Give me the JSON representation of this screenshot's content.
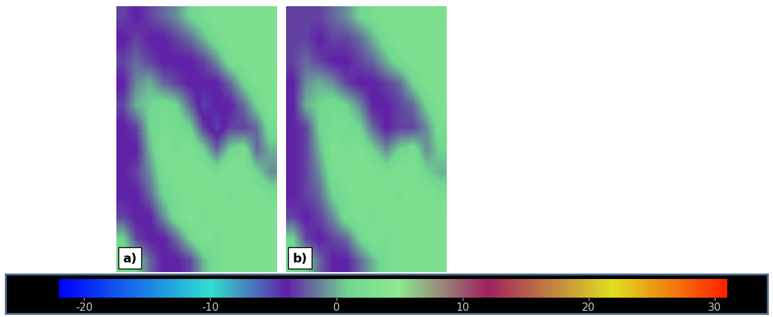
{
  "chart_data": [
    {
      "type": "heatmap",
      "title": "a)",
      "tick_labels": false,
      "cells": [
        [
          -3,
          -4,
          -3,
          -2,
          -1,
          1,
          2,
          3,
          3,
          3,
          3,
          3
        ],
        [
          -4,
          -3,
          -4,
          -4,
          -3,
          -2,
          0,
          2,
          3,
          3,
          3,
          3
        ],
        [
          -3,
          -2,
          -3,
          -4,
          -4,
          -4,
          -3,
          -1,
          2,
          3,
          3,
          3
        ],
        [
          -4,
          -1,
          0,
          -2,
          -3,
          -4,
          -4,
          -4,
          -2,
          1,
          3,
          3
        ],
        [
          -3,
          0,
          1,
          2,
          1,
          -2,
          -5,
          -4,
          -4,
          -2,
          1,
          3
        ],
        [
          -4,
          -3,
          1,
          2,
          2,
          1,
          -3,
          -5,
          -3,
          -3,
          -2,
          2
        ],
        [
          -4,
          -4,
          0,
          3,
          2,
          3,
          1,
          -2,
          1,
          2,
          -2,
          0
        ],
        [
          -4,
          -3,
          -1,
          2,
          3,
          3,
          3,
          2,
          3,
          3,
          1,
          -1
        ],
        [
          -4,
          -4,
          -2,
          1,
          2,
          3,
          3,
          3,
          2,
          3,
          3,
          2
        ],
        [
          -3,
          -4,
          -4,
          -1,
          2,
          3,
          2,
          3,
          3,
          3,
          3,
          3
        ],
        [
          1,
          -3,
          -4,
          -4,
          -2,
          1,
          3,
          2,
          3,
          3,
          3,
          3
        ],
        [
          2,
          1,
          -2,
          -4,
          -4,
          -3,
          0,
          2,
          3,
          3,
          3,
          3
        ]
      ]
    },
    {
      "type": "heatmap",
      "title": "b)",
      "tick_labels": false,
      "cells": [
        [
          -3,
          -3,
          -3,
          -2,
          -1,
          1,
          2,
          3,
          3,
          3,
          3,
          3
        ],
        [
          -3,
          -3,
          -4,
          -3,
          -3,
          -2,
          0,
          2,
          3,
          3,
          3,
          3
        ],
        [
          -3,
          -2,
          -3,
          -4,
          -4,
          -3,
          -2,
          0,
          2,
          3,
          3,
          3
        ],
        [
          -4,
          -1,
          0,
          -1,
          -3,
          -4,
          -4,
          -3,
          -2,
          1,
          3,
          3
        ],
        [
          -4,
          0,
          1,
          2,
          1,
          -1,
          -4,
          -4,
          -3,
          -2,
          1,
          3
        ],
        [
          -4,
          -3,
          1,
          2,
          2,
          1,
          -2,
          -4,
          -3,
          -3,
          -1,
          2
        ],
        [
          -4,
          -3,
          0,
          3,
          2,
          3,
          1,
          -1,
          1,
          2,
          -1,
          1
        ],
        [
          -4,
          -3,
          -1,
          2,
          3,
          3,
          3,
          2,
          3,
          3,
          1,
          0
        ],
        [
          -4,
          -3,
          -2,
          1,
          2,
          3,
          3,
          3,
          2,
          3,
          3,
          2
        ],
        [
          -3,
          -4,
          -3,
          -1,
          2,
          3,
          2,
          3,
          3,
          3,
          3,
          3
        ],
        [
          1,
          -3,
          -4,
          -3,
          -2,
          1,
          3,
          2,
          3,
          3,
          3,
          3
        ],
        [
          2,
          1,
          -2,
          -4,
          -4,
          -2,
          0,
          2,
          3,
          3,
          3,
          3
        ]
      ]
    }
  ],
  "colorbar": {
    "range": [
      -22,
      31
    ],
    "ticks": [
      -20,
      -10,
      0,
      10,
      20,
      30
    ]
  }
}
